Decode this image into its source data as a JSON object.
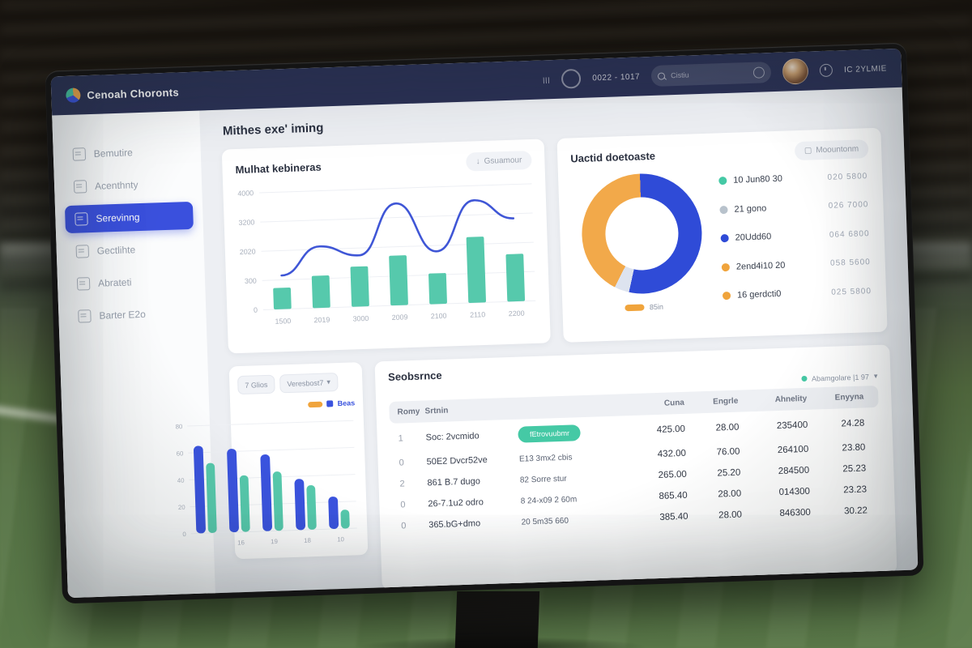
{
  "navbar": {
    "logo_text": "Cenoah Choronts",
    "time_text": "0022 - 1017",
    "search_placeholder": "Cistiu",
    "user_label": "IC 2YLMIE"
  },
  "icons": {
    "grid_glyph": "|||",
    "download_glyph": "↓",
    "square_glyph": "▢",
    "caret_glyph": "▾"
  },
  "sidebar": {
    "items": [
      {
        "label": "Bemutire",
        "active": false
      },
      {
        "label": "Acenthnty",
        "active": false
      },
      {
        "label": "Serevinng",
        "active": true
      },
      {
        "label": "Gectlihte",
        "active": false
      },
      {
        "label": "Abrateti",
        "active": false
      },
      {
        "label": "Barter E2o",
        "active": false
      }
    ]
  },
  "main": {
    "page_title": "Mithes exe' iming"
  },
  "combo_card": {
    "title": "Mulhat kebineras",
    "button_label": "Gsuamour"
  },
  "donut_card": {
    "title": "Uactid doetoaste",
    "button_label": "Moountonm"
  },
  "mini_card": {
    "filters": [
      "7 Glios",
      "Veresbost7"
    ],
    "legend_label": "Beas"
  },
  "table": {
    "title": "Seobsrnce",
    "filter_label": "Abamgolare |1  97",
    "columns": [
      "Romy",
      "Srtnin",
      "",
      "Cuna",
      "Engrle",
      "Ahnelity",
      "Enyyna"
    ],
    "numeric_columns": [
      3,
      4,
      5,
      6
    ],
    "rows": [
      {
        "cells": [
          "1",
          "Soc: 2vcmido",
          "fEtrovuubmr",
          "425.00",
          "28.00",
          "235400",
          "24.28"
        ],
        "badge_col": 2
      },
      {
        "cells": [
          "0",
          "50E2 Dvcr52ve",
          "E13 3mx2 cbis",
          "432.00",
          "76.00",
          "264100",
          "23.80"
        ]
      },
      {
        "cells": [
          "2",
          "861 B.7 dugo",
          "82 Sorre stur",
          "265.00",
          "25.20",
          "284500",
          "25.23"
        ]
      },
      {
        "cells": [
          "0",
          "26-7.1u2 odro",
          "8 24-x09 2 60m",
          "865.40",
          "28.00",
          "014300",
          "23.23"
        ]
      },
      {
        "cells": [
          "0",
          "365.bG+dmo",
          "20 5m35 660",
          "385.40",
          "28.00",
          "846300",
          "30.22"
        ]
      }
    ]
  },
  "chart_data": [
    {
      "id": "combo-chart",
      "type": "bar",
      "title": "Mulhat kebineras",
      "categories": [
        "1500",
        "2019",
        "3000",
        "2009",
        "2100",
        "2110",
        "2200"
      ],
      "series": [
        {
          "name": "volume-bars",
          "type": "bar",
          "color": "#56c9ac",
          "values": [
            730,
            1100,
            1370,
            1700,
            1050,
            2250,
            1620
          ]
        },
        {
          "name": "trend-line",
          "type": "line",
          "color": "#3f56d6",
          "values": [
            1150,
            2100,
            1750,
            3480,
            1800,
            3500,
            2840
          ]
        }
      ],
      "ylim": [
        0,
        4000
      ],
      "yticks": [
        "4000",
        "3200",
        "2020",
        "300",
        "0"
      ],
      "grid": true,
      "legend_position": "none"
    },
    {
      "id": "donut-chart",
      "type": "pie",
      "title": "Uactid doetoaste",
      "slices": [
        {
          "label": "20Udd60",
          "pct": 54,
          "color": "#2f4bd7"
        },
        {
          "label": "21 gono",
          "pct": 4,
          "color": "#dde3ef"
        },
        {
          "label": "2end4i10 20",
          "pct": 42,
          "color": "#f2a94a"
        }
      ],
      "legend": [
        {
          "label": "10 Jun80 30",
          "value": "020  5800",
          "color": "#45c9a5"
        },
        {
          "label": "21 gono",
          "value": "026  7000",
          "color": "#b8c2cc"
        },
        {
          "label": "20Udd60",
          "value": "064  6800",
          "color": "#2f4bd7"
        },
        {
          "label": "2end4i10 20",
          "value": "058  5600",
          "color": "#f0a43c"
        },
        {
          "label": "16 gerdcti0",
          "value": "025  5800",
          "color": "#f0a43c"
        }
      ],
      "sub_legend": {
        "label": "85in",
        "color": "#f0a43c"
      },
      "legend_position": "right"
    },
    {
      "id": "mini-grouped-chart",
      "type": "bar",
      "categories": [
        "",
        "16",
        "19",
        "18",
        "10"
      ],
      "series": [
        {
          "name": "primary",
          "color": "#3a53de",
          "values": [
            65,
            62,
            57,
            38,
            24
          ]
        },
        {
          "name": "Beas",
          "color": "#56c9ac",
          "values": [
            52,
            42,
            44,
            33,
            14
          ]
        }
      ],
      "ylim": [
        0,
        80
      ],
      "yticks": [
        "80",
        "60",
        "40",
        "20",
        "0"
      ],
      "grid": true,
      "legend_position": "top-right"
    }
  ]
}
